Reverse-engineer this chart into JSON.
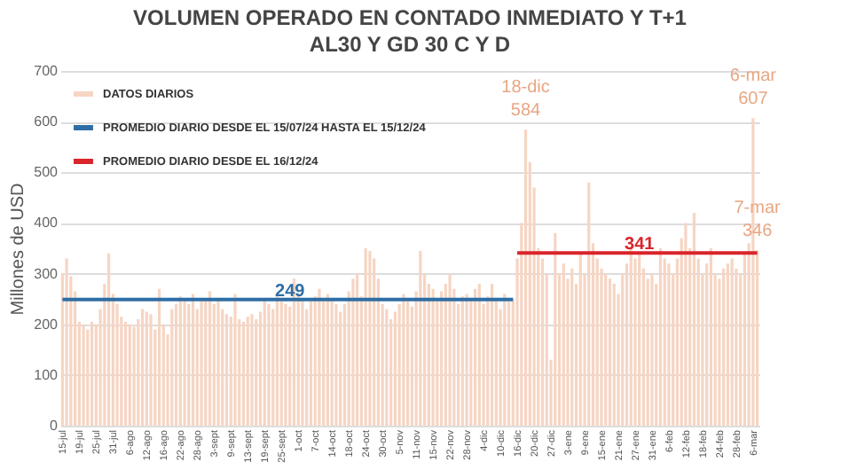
{
  "chart_data": {
    "type": "bar",
    "title": "VOLUMEN OPERADO EN CONTADO INMEDIATO Y T+1",
    "subtitle": "AL30 Y GD 30 C Y D",
    "ylabel": "Millones de USD",
    "categories": [
      "15-jul",
      null,
      null,
      null,
      "19-jul",
      null,
      null,
      null,
      "25-jul",
      null,
      null,
      null,
      "31-jul",
      null,
      null,
      null,
      "6-ago",
      null,
      null,
      null,
      "12-ago",
      null,
      null,
      null,
      "16-ago",
      null,
      null,
      null,
      "22-ago",
      null,
      null,
      null,
      "28-ago",
      null,
      null,
      null,
      "3-sept",
      null,
      null,
      null,
      "9-sept",
      null,
      null,
      null,
      "13-sept",
      null,
      null,
      null,
      "19-sept",
      null,
      null,
      null,
      "25-sept",
      null,
      null,
      null,
      "1-oct",
      null,
      null,
      null,
      "7-oct",
      null,
      null,
      null,
      "14-oct",
      null,
      null,
      null,
      "18-oct",
      null,
      null,
      null,
      "24-oct",
      null,
      null,
      null,
      "30-oct",
      null,
      null,
      null,
      "5-nov",
      null,
      null,
      null,
      "11-nov",
      null,
      null,
      null,
      "15-nov",
      null,
      null,
      null,
      "22-nov",
      null,
      null,
      null,
      "28-nov",
      null,
      null,
      null,
      "4-dic",
      null,
      null,
      null,
      "10-dic",
      null,
      null,
      null,
      "16-dic",
      null,
      null,
      null,
      "20-dic",
      null,
      null,
      null,
      "27-dic",
      null,
      null,
      null,
      "3-ene",
      null,
      null,
      null,
      "9-ene",
      null,
      null,
      null,
      "15-ene",
      null,
      null,
      null,
      "21-ene",
      null,
      null,
      null,
      "27-ene",
      null,
      null,
      null,
      "31-ene",
      null,
      null,
      null,
      "6-feb",
      null,
      null,
      null,
      "12-feb",
      null,
      null,
      null,
      "18-feb",
      null,
      null,
      null,
      "24-feb",
      null,
      null,
      null,
      "28-feb",
      null,
      null,
      null,
      "6-mar",
      null
    ],
    "series": [
      {
        "name": "DATOS DIARIOS",
        "color": "#f6d5c3",
        "values": [
          300,
          330,
          295,
          265,
          205,
          200,
          190,
          205,
          200,
          230,
          280,
          340,
          260,
          240,
          215,
          205,
          200,
          195,
          210,
          230,
          225,
          220,
          190,
          270,
          200,
          180,
          230,
          240,
          255,
          250,
          240,
          260,
          230,
          245,
          250,
          265,
          240,
          250,
          230,
          220,
          215,
          260,
          210,
          205,
          215,
          220,
          210,
          225,
          250,
          240,
          230,
          255,
          245,
          240,
          235,
          290,
          260,
          250,
          230,
          245,
          255,
          270,
          245,
          260,
          250,
          240,
          225,
          240,
          265,
          290,
          300,
          255,
          350,
          345,
          330,
          290,
          240,
          230,
          210,
          225,
          240,
          260,
          245,
          235,
          265,
          345,
          300,
          280,
          270,
          250,
          265,
          280,
          300,
          270,
          240,
          255,
          260,
          250,
          270,
          280,
          240,
          255,
          280,
          250,
          230,
          260,
          245,
          250,
          330,
          400,
          584,
          520,
          470,
          350,
          330,
          300,
          130,
          380,
          300,
          320,
          290,
          310,
          280,
          340,
          300,
          480,
          360,
          330,
          310,
          300,
          290,
          280,
          260,
          300,
          320,
          350,
          330,
          340,
          310,
          290,
          300,
          280,
          350,
          330,
          320,
          300,
          330,
          370,
          400,
          350,
          420,
          330,
          300,
          320,
          350,
          300,
          290,
          310,
          320,
          330,
          310,
          300,
          340,
          360,
          607,
          346
        ],
        "value_labels": [
          null,
          null,
          null,
          null,
          null,
          null,
          null,
          null,
          null,
          null,
          null,
          null,
          null,
          null,
          null,
          null,
          null,
          null,
          null,
          null,
          null,
          null,
          null,
          null,
          null,
          null,
          null,
          null,
          null,
          null,
          null,
          null,
          null,
          null,
          null,
          null,
          null,
          null,
          null,
          null,
          null,
          null,
          null,
          null,
          null,
          null,
          null,
          null,
          null,
          null,
          null,
          null,
          null,
          null,
          null,
          null,
          null,
          null,
          null,
          null,
          null,
          null,
          null,
          null,
          null,
          null,
          null,
          null,
          null,
          null,
          null,
          null,
          null,
          null,
          null,
          null,
          null,
          null,
          null,
          null,
          null,
          null,
          null,
          null,
          null,
          null,
          null,
          null,
          null,
          null,
          null,
          null,
          null,
          null,
          null,
          null,
          null,
          null,
          null,
          null,
          null,
          null,
          null,
          null,
          null,
          null,
          null,
          null,
          null,
          null,
          "584",
          null,
          null,
          null,
          null,
          null,
          null,
          null,
          null,
          null,
          null,
          null,
          null,
          null,
          null,
          null,
          null,
          null,
          null,
          null,
          null,
          null,
          null,
          null,
          null,
          null,
          null,
          null,
          null,
          null,
          null,
          null,
          null,
          null,
          null,
          null,
          null,
          null,
          null,
          null,
          null,
          null,
          null,
          null,
          null,
          null,
          null,
          null,
          null,
          null,
          null,
          null,
          null,
          null,
          "607",
          "346"
        ]
      },
      {
        "name": "PROMEDIO DIARIO DESDE EL 15/07/24 HASTA EL 15/12/24",
        "type": "line",
        "color": "#2f6ea5",
        "values": [
          249,
          249,
          249,
          249,
          249,
          249,
          249,
          249,
          249,
          249,
          249,
          249,
          249,
          249,
          249,
          249,
          249,
          249,
          249,
          249,
          249,
          249,
          249,
          249,
          249,
          249,
          249,
          249,
          249,
          249,
          249,
          249,
          249,
          249,
          249,
          249,
          249,
          249,
          249,
          249,
          249,
          249,
          249,
          249,
          249,
          249,
          249,
          249,
          249,
          249,
          249,
          249,
          249,
          249,
          249,
          249,
          249,
          249,
          249,
          249,
          249,
          249,
          249,
          249,
          249,
          249,
          249,
          249,
          249,
          249,
          249,
          249,
          249,
          249,
          249,
          249,
          249,
          249,
          249,
          249,
          249,
          249,
          249,
          249,
          249,
          249,
          249,
          249,
          249,
          249,
          249,
          249,
          249,
          249,
          249,
          249,
          249,
          249,
          249,
          249,
          249,
          249,
          249,
          249,
          249,
          249,
          249,
          249,
          null,
          null,
          null,
          null,
          null,
          null,
          null,
          null,
          null,
          null,
          null,
          null,
          null,
          null,
          null,
          null,
          null,
          null,
          null,
          null,
          null,
          null,
          null,
          null,
          null,
          null,
          null,
          null,
          null,
          null,
          null,
          null,
          null,
          null,
          null,
          null,
          null,
          null,
          null,
          null,
          null,
          null,
          null,
          null,
          null,
          null,
          null,
          null,
          null,
          null,
          null,
          null,
          null,
          null,
          null,
          null,
          null,
          null
        ]
      },
      {
        "name": "PROMEDIO DIARIO DESDE EL 16/12/24",
        "type": "line",
        "color": "#d9252b",
        "values": [
          null,
          null,
          null,
          null,
          null,
          null,
          null,
          null,
          null,
          null,
          null,
          null,
          null,
          null,
          null,
          null,
          null,
          null,
          null,
          null,
          null,
          null,
          null,
          null,
          null,
          null,
          null,
          null,
          null,
          null,
          null,
          null,
          null,
          null,
          null,
          null,
          null,
          null,
          null,
          null,
          null,
          null,
          null,
          null,
          null,
          null,
          null,
          null,
          null,
          null,
          null,
          null,
          null,
          null,
          null,
          null,
          null,
          null,
          null,
          null,
          null,
          null,
          null,
          null,
          null,
          null,
          null,
          null,
          null,
          null,
          null,
          null,
          null,
          null,
          null,
          null,
          null,
          null,
          null,
          null,
          null,
          null,
          null,
          null,
          null,
          null,
          null,
          null,
          null,
          null,
          null,
          null,
          null,
          null,
          null,
          null,
          null,
          null,
          null,
          null,
          null,
          null,
          null,
          null,
          null,
          null,
          null,
          null,
          341,
          341,
          341,
          341,
          341,
          341,
          341,
          341,
          341,
          341,
          341,
          341,
          341,
          341,
          341,
          341,
          341,
          341,
          341,
          341,
          341,
          341,
          341,
          341,
          341,
          341,
          341,
          341,
          341,
          341,
          341,
          341,
          341,
          341,
          341,
          341,
          341,
          341,
          341,
          341,
          341,
          341,
          341,
          341,
          341,
          341,
          341,
          341,
          341,
          341,
          341,
          341,
          341,
          341,
          341,
          341,
          341,
          341
        ]
      }
    ],
    "annotations": [
      {
        "text": "18-dic",
        "y": 584
      },
      {
        "text": "6-mar",
        "y": 607
      },
      {
        "text": "7-mar",
        "y": 346
      },
      {
        "text": "249",
        "y": 249
      },
      {
        "text": "341",
        "y": 341
      }
    ],
    "ylim": [
      0,
      700
    ],
    "yticks": [
      0,
      100,
      200,
      300,
      400,
      500,
      600,
      700
    ],
    "grid": "y",
    "legend": "top left"
  }
}
